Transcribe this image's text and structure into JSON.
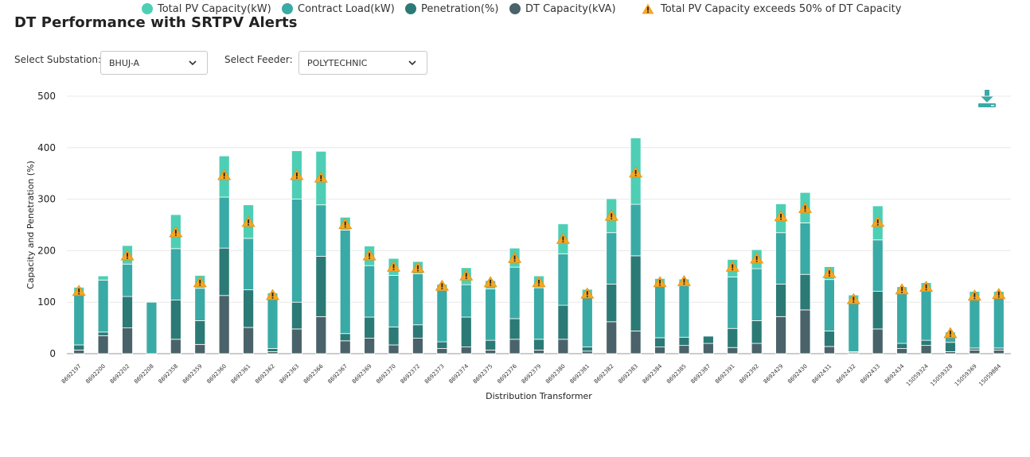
{
  "title": "DT Performance with SRTPV Alerts",
  "filters": {
    "substation_label": "Select Substation:",
    "substation_value": "BHUJ-A",
    "feeder_label": "Select Feeder:",
    "feeder_value": "POLYTECHNIC"
  },
  "icons": {
    "download": "download-icon",
    "dropdown": "chevron-down-icon",
    "alert": "warning-triangle-icon"
  },
  "colors": {
    "pv": "#4ecfb5",
    "contract": "#3aaaa6",
    "penetration": "#2b7a76",
    "dt": "#4a636a",
    "alert": "#f5a623"
  },
  "legend": [
    {
      "label": "Total PV Capacity(kW)",
      "color": "#4ecfb5",
      "kind": "dot"
    },
    {
      "label": "Contract Load(kW)",
      "color": "#3aaaa6",
      "kind": "dot"
    },
    {
      "label": "Penetration(%)",
      "color": "#2b7a76",
      "kind": "dot"
    },
    {
      "label": "DT Capacity(kVA)",
      "color": "#4a636a",
      "kind": "dot"
    },
    {
      "label": "Total PV Capacity exceeds 50% of DT Capacity",
      "color": "#f5a623",
      "kind": "warn"
    }
  ],
  "chart_data": {
    "type": "bar",
    "stacked": true,
    "xlabel": "Distribution Transformer",
    "ylabel": "Capacity and Penetration (%)",
    "ylim": [
      0,
      500
    ],
    "yticks": [
      0,
      100,
      200,
      300,
      400,
      500
    ],
    "grid": true,
    "legend_position": "bottom",
    "categories": [
      "8692197",
      "8692200",
      "8692202",
      "8692208",
      "8692358",
      "8692359",
      "8692360",
      "8692361",
      "8692362",
      "8692363",
      "8692366",
      "8692367",
      "8692369",
      "8692370",
      "8692372",
      "8692373",
      "8692374",
      "8692375",
      "8692376",
      "8692379",
      "8692380",
      "8692381",
      "8692382",
      "8692383",
      "8692384",
      "8692385",
      "8692387",
      "8692391",
      "8692392",
      "8692429",
      "8692430",
      "8692431",
      "8692432",
      "8692433",
      "8692434",
      "15059324",
      "15059328",
      "15059369",
      "15059884"
    ],
    "series": [
      {
        "name": "DT Capacity(kVA)",
        "values": [
          7,
          35,
          50,
          0,
          28,
          18,
          113,
          51,
          4,
          48,
          72,
          25,
          30,
          17,
          30,
          10,
          13,
          7,
          28,
          7,
          28,
          5,
          62,
          44,
          13,
          16,
          20,
          12,
          20,
          72,
          85,
          14,
          2,
          48,
          10,
          16,
          4,
          7,
          7
        ]
      },
      {
        "name": "Penetration(%)",
        "values": [
          10,
          7,
          61,
          0,
          76,
          46,
          92,
          73,
          6,
          52,
          117,
          14,
          41,
          35,
          26,
          13,
          58,
          19,
          40,
          21,
          66,
          8,
          73,
          146,
          18,
          16,
          14,
          37,
          44,
          63,
          69,
          30,
          2,
          73,
          10,
          10,
          18,
          4,
          4
        ]
      },
      {
        "name": "Contract Load(kW)",
        "values": [
          102,
          101,
          63,
          100,
          100,
          63,
          99,
          100,
          98,
          200,
          100,
          201,
          100,
          100,
          99,
          100,
          63,
          100,
          100,
          100,
          100,
          100,
          100,
          100,
          100,
          100,
          0,
          100,
          101,
          100,
          100,
          100,
          100,
          100,
          100,
          100,
          10,
          100,
          100
        ]
      },
      {
        "name": "Total PV Capacity(kW)",
        "values": [
          10,
          8,
          36,
          0,
          66,
          25,
          80,
          65,
          10,
          94,
          104,
          25,
          38,
          33,
          24,
          12,
          33,
          16,
          37,
          23,
          58,
          12,
          66,
          129,
          15,
          13,
          0,
          34,
          37,
          56,
          59,
          25,
          10,
          66,
          10,
          12,
          10,
          10,
          10
        ]
      }
    ],
    "alerts": [
      true,
      false,
      true,
      false,
      true,
      true,
      true,
      true,
      true,
      true,
      true,
      true,
      true,
      true,
      true,
      true,
      true,
      true,
      true,
      true,
      true,
      true,
      true,
      true,
      true,
      true,
      false,
      true,
      true,
      true,
      true,
      true,
      true,
      true,
      true,
      true,
      true,
      true,
      true
    ],
    "alert_values": [
      122,
      null,
      191,
      null,
      236,
      139,
      347,
      256,
      114,
      347,
      342,
      252,
      191,
      169,
      167,
      132,
      152,
      139,
      186,
      139,
      223,
      117,
      268,
      352,
      139,
      141,
      null,
      169,
      185,
      267,
      283,
      157,
      106,
      256,
      125,
      130,
      40,
      113,
      116
    ]
  }
}
